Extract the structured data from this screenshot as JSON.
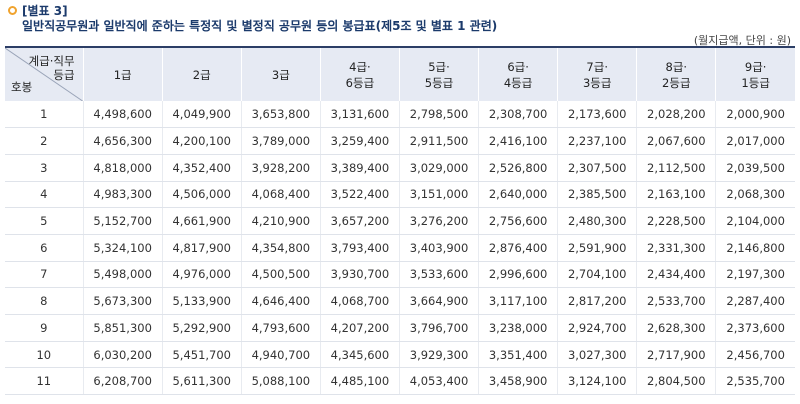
{
  "header": {
    "table_no": "[별표 3]",
    "title": "일반직공무원과 일반직에 준하는 특정직 및 별정직 공무원 등의 봉급표(제5조 및 별표 1 관련)",
    "unit": "(월지급액, 단위 : 원)"
  },
  "table": {
    "corner_top_line1": "계급·직무",
    "corner_top_line2": "등급",
    "corner_bottom": "호봉",
    "columns": [
      {
        "line1": "1급",
        "line2": ""
      },
      {
        "line1": "2급",
        "line2": ""
      },
      {
        "line1": "3급",
        "line2": ""
      },
      {
        "line1": "4급·",
        "line2": "6등급"
      },
      {
        "line1": "5급·",
        "line2": "5등급"
      },
      {
        "line1": "6급·",
        "line2": "4등급"
      },
      {
        "line1": "7급·",
        "line2": "3등급"
      },
      {
        "line1": "8급·",
        "line2": "2등급"
      },
      {
        "line1": "9급·",
        "line2": "1등급"
      }
    ],
    "rows": [
      {
        "step": "1",
        "values": [
          "4,498,600",
          "4,049,900",
          "3,653,800",
          "3,131,600",
          "2,798,500",
          "2,308,700",
          "2,173,600",
          "2,028,200",
          "2,000,900"
        ]
      },
      {
        "step": "2",
        "values": [
          "4,656,300",
          "4,200,100",
          "3,789,000",
          "3,259,400",
          "2,911,500",
          "2,416,100",
          "2,237,100",
          "2,067,600",
          "2,017,000"
        ]
      },
      {
        "step": "3",
        "values": [
          "4,818,000",
          "4,352,400",
          "3,928,200",
          "3,389,400",
          "3,029,000",
          "2,526,800",
          "2,307,500",
          "2,112,500",
          "2,039,500"
        ]
      },
      {
        "step": "4",
        "values": [
          "4,983,300",
          "4,506,000",
          "4,068,400",
          "3,522,400",
          "3,151,000",
          "2,640,000",
          "2,385,500",
          "2,163,100",
          "2,068,300"
        ]
      },
      {
        "step": "5",
        "values": [
          "5,152,700",
          "4,661,900",
          "4,210,900",
          "3,657,200",
          "3,276,200",
          "2,756,600",
          "2,480,300",
          "2,228,500",
          "2,104,000"
        ]
      },
      {
        "step": "6",
        "values": [
          "5,324,100",
          "4,817,900",
          "4,354,800",
          "3,793,400",
          "3,403,900",
          "2,876,400",
          "2,591,900",
          "2,331,300",
          "2,146,800"
        ]
      },
      {
        "step": "7",
        "values": [
          "5,498,000",
          "4,976,000",
          "4,500,500",
          "3,930,700",
          "3,533,600",
          "2,996,600",
          "2,704,100",
          "2,434,400",
          "2,197,300"
        ]
      },
      {
        "step": "8",
        "values": [
          "5,673,300",
          "5,133,900",
          "4,646,400",
          "4,068,700",
          "3,664,900",
          "3,117,100",
          "2,817,200",
          "2,533,700",
          "2,287,400"
        ]
      },
      {
        "step": "9",
        "values": [
          "5,851,300",
          "5,292,900",
          "4,793,600",
          "4,207,200",
          "3,796,700",
          "3,238,000",
          "2,924,700",
          "2,628,300",
          "2,373,600"
        ]
      },
      {
        "step": "10",
        "values": [
          "6,030,200",
          "5,451,700",
          "4,940,700",
          "4,345,600",
          "3,929,300",
          "3,351,400",
          "3,027,300",
          "2,717,900",
          "2,456,700"
        ]
      },
      {
        "step": "11",
        "values": [
          "6,208,700",
          "5,611,300",
          "5,088,100",
          "4,485,100",
          "4,053,400",
          "3,458,900",
          "3,124,100",
          "2,804,500",
          "2,535,700"
        ]
      }
    ]
  }
}
